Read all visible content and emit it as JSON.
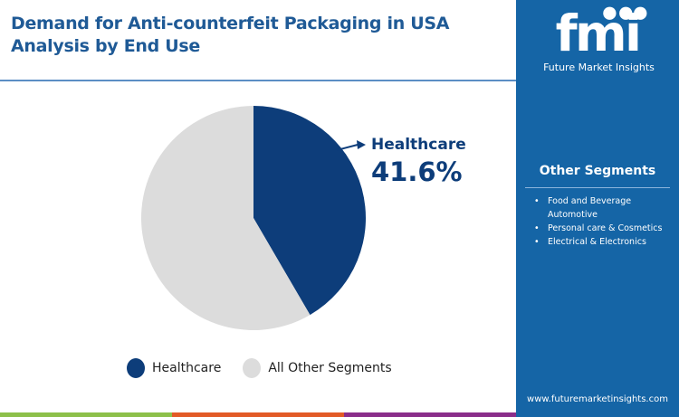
{
  "chart_data": {
    "type": "pie",
    "title": "Demand for Anti-counterfeit Packaging in USA Analysis by End Use",
    "title_lines": [
      "Demand for Anti-counterfeit Packaging in USA",
      "Analysis by End Use"
    ],
    "slices": [
      {
        "name": "Healthcare",
        "value": 41.6,
        "label": "41.6%",
        "color": "#0d3d7a"
      },
      {
        "name": "All Other Segments",
        "value": 58.4,
        "color": "#dcdcdc"
      }
    ],
    "legend": [
      "Healthcare",
      "All Other Segments"
    ],
    "legend_placement": "bottom"
  },
  "brand": {
    "logo_text": "fmi",
    "name": "Future Market Insights",
    "url": "www.futuremarketinsights.com"
  },
  "other_segments": {
    "heading": "Other Segments",
    "items": [
      "Food and Beverage Automotive",
      "Personal care & Cosmetics",
      "Electrical & Electronics"
    ]
  },
  "colors": {
    "panel": "#1565a6",
    "accent_bars": [
      "#8dc04a",
      "#e25a26",
      "#8a2d8a",
      "#1565a6"
    ]
  }
}
